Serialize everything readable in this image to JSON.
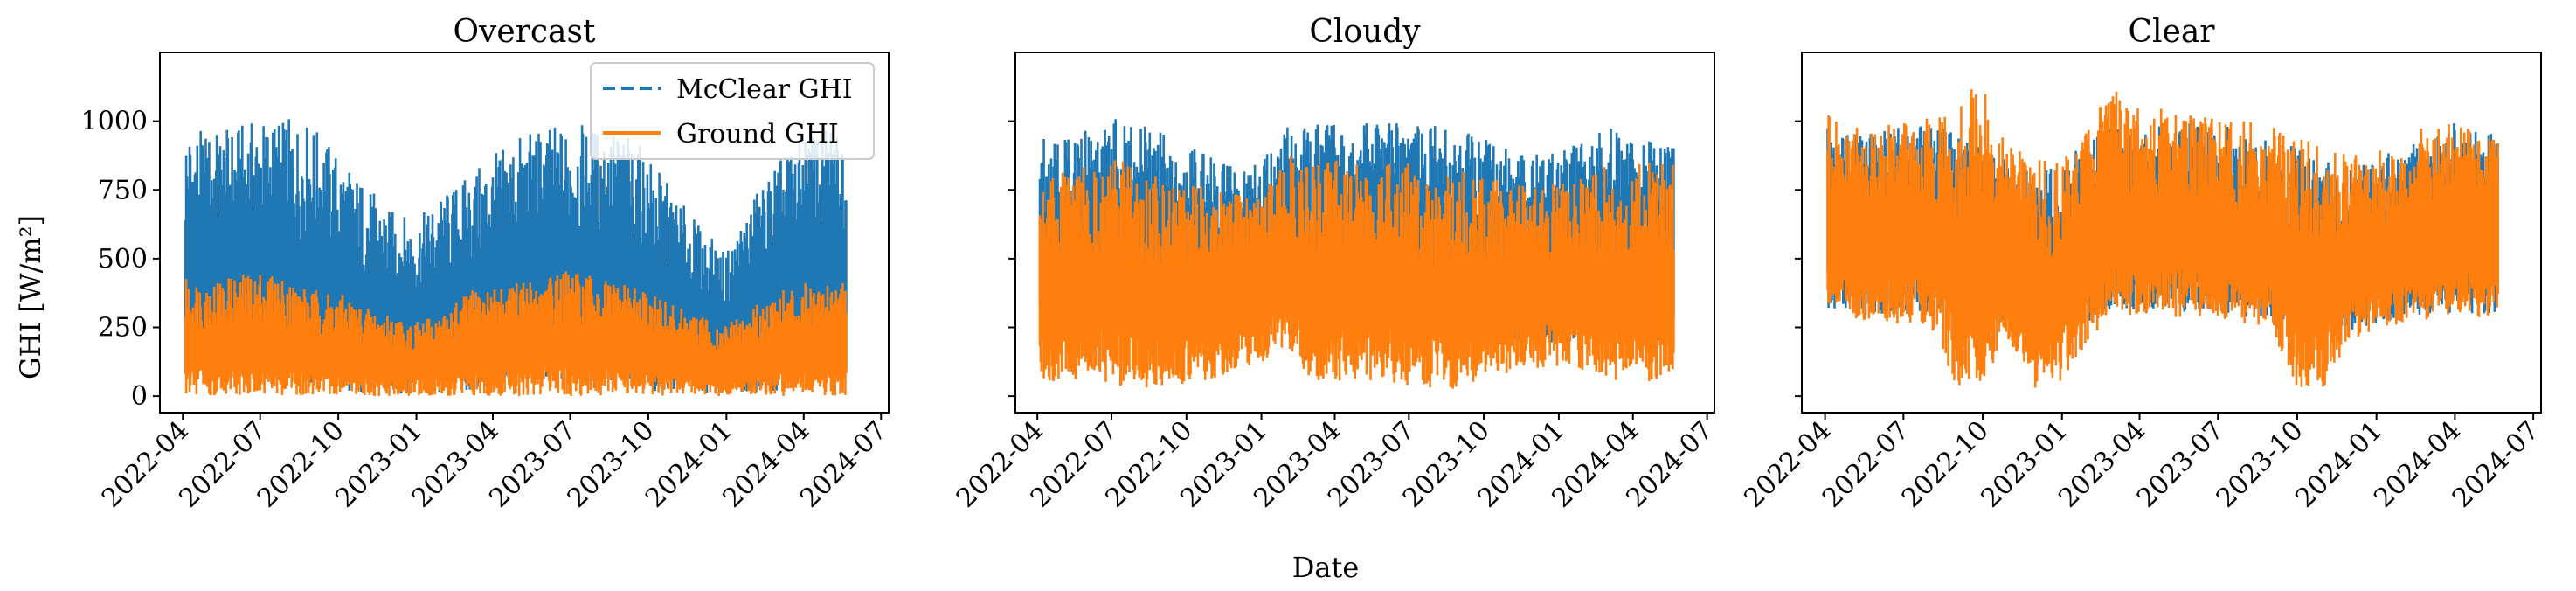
{
  "figure": {
    "supxlabel": "Date",
    "supylabel": "GHI [W/m²]"
  },
  "style": {
    "mcclear_color": "#1f77b4",
    "ground_color": "#ff7f0e",
    "mcclear_linestyle": "dashed",
    "ground_linestyle": "solid"
  },
  "legend": {
    "placement": "upper right of first panel",
    "entries": [
      "McClear GHI",
      "Ground GHI"
    ]
  },
  "axes": {
    "y_ticks": [
      0,
      250,
      500,
      750,
      1000
    ],
    "y_tick_labels": [
      "0",
      "250",
      "500",
      "750",
      "1000"
    ],
    "y_lim": [
      -60,
      1250
    ],
    "x_tick_labels": [
      "2022-04",
      "2022-07",
      "2022-10",
      "2023-01",
      "2023-04",
      "2023-07",
      "2023-10",
      "2024-01",
      "2024-04",
      "2024-07"
    ],
    "x_lim": [
      "2022-03-05",
      "2024-07-10"
    ],
    "shared_y": true
  },
  "chart_data": [
    {
      "type": "line",
      "title": "Overcast",
      "x": [
        "2022-04",
        "2022-05",
        "2022-06",
        "2022-07",
        "2022-08",
        "2022-09",
        "2022-10",
        "2022-11",
        "2022-12",
        "2023-01",
        "2023-02",
        "2023-03",
        "2023-04",
        "2023-05",
        "2023-06",
        "2023-07",
        "2023-08",
        "2023-09",
        "2023-10",
        "2023-11",
        "2023-12",
        "2024-01",
        "2024-02",
        "2024-03",
        "2024-04",
        "2024-05"
      ],
      "series": [
        {
          "name": "McClear GHI",
          "min": [
            40,
            60,
            70,
            60,
            40,
            30,
            20,
            10,
            10,
            10,
            10,
            20,
            30,
            50,
            60,
            60,
            40,
            30,
            20,
            10,
            10,
            10,
            10,
            20,
            40,
            60
          ],
          "max": [
            990,
            960,
            980,
            1010,
            1010,
            990,
            880,
            780,
            680,
            640,
            730,
            800,
            880,
            950,
            980,
            990,
            980,
            970,
            880,
            740,
            620,
            520,
            720,
            860,
            950,
            990
          ]
        },
        {
          "name": "Ground GHI",
          "min": [
            0,
            0,
            0,
            0,
            0,
            0,
            0,
            0,
            0,
            0,
            0,
            0,
            0,
            0,
            0,
            0,
            0,
            0,
            0,
            0,
            0,
            0,
            0,
            0,
            0,
            0
          ],
          "max": [
            430,
            420,
            440,
            460,
            430,
            390,
            380,
            330,
            300,
            270,
            300,
            380,
            400,
            420,
            440,
            460,
            430,
            410,
            380,
            330,
            290,
            260,
            320,
            380,
            410,
            430
          ]
        }
      ]
    },
    {
      "type": "line",
      "title": "Cloudy",
      "x": [
        "2022-04",
        "2022-05",
        "2022-06",
        "2022-07",
        "2022-08",
        "2022-09",
        "2022-10",
        "2022-11",
        "2022-12",
        "2023-01",
        "2023-02",
        "2023-03",
        "2023-04",
        "2023-05",
        "2023-06",
        "2023-07",
        "2023-08",
        "2023-09",
        "2023-10",
        "2023-11",
        "2023-12",
        "2024-01",
        "2024-02",
        "2024-03",
        "2024-04",
        "2024-05"
      ],
      "series": [
        {
          "name": "McClear GHI",
          "min": [
            220,
            240,
            260,
            250,
            240,
            230,
            200,
            190,
            200,
            210,
            280,
            280,
            250,
            240,
            250,
            240,
            240,
            230,
            210,
            190,
            190,
            190,
            200,
            220,
            240,
            260
          ],
          "max": [
            1000,
            960,
            990,
            1010,
            1000,
            960,
            920,
            880,
            860,
            850,
            1000,
            990,
            990,
            1000,
            990,
            1000,
            990,
            970,
            940,
            900,
            880,
            900,
            940,
            990,
            960,
            940
          ]
        },
        {
          "name": "Ground GHI",
          "min": [
            40,
            60,
            50,
            40,
            30,
            10,
            40,
            60,
            90,
            120,
            180,
            60,
            50,
            60,
            50,
            40,
            30,
            20,
            60,
            80,
            100,
            110,
            90,
            60,
            40,
            60
          ],
          "max": [
            830,
            820,
            840,
            860,
            850,
            800,
            790,
            760,
            740,
            720,
            880,
            870,
            860,
            870,
            860,
            850,
            840,
            820,
            800,
            780,
            760,
            780,
            800,
            840,
            860,
            850
          ]
        }
      ]
    },
    {
      "type": "line",
      "title": "Clear",
      "x": [
        "2022-04",
        "2022-05",
        "2022-06",
        "2022-07",
        "2022-08",
        "2022-09",
        "2022-10",
        "2022-11",
        "2022-12",
        "2023-01",
        "2023-02",
        "2023-03",
        "2023-04",
        "2023-05",
        "2023-06",
        "2023-07",
        "2023-08",
        "2023-09",
        "2023-10",
        "2023-11",
        "2023-12",
        "2024-01",
        "2024-02",
        "2024-03",
        "2024-04",
        "2024-05"
      ],
      "series": [
        {
          "name": "McClear GHI",
          "min": [
            300,
            280,
            300,
            290,
            300,
            260,
            280,
            260,
            230,
            250,
            260,
            320,
            300,
            300,
            300,
            310,
            290,
            260,
            240,
            230,
            230,
            260,
            280,
            300,
            300,
            300
          ],
          "max": [
            1000,
            960,
            960,
            990,
            1000,
            960,
            900,
            860,
            840,
            820,
            950,
            1000,
            990,
            980,
            1000,
            1000,
            990,
            960,
            900,
            860,
            830,
            860,
            920,
            980,
            1000,
            960
          ]
        },
        {
          "name": "Ground GHI",
          "min": [
            280,
            260,
            280,
            250,
            260,
            40,
            40,
            200,
            30,
            40,
            200,
            300,
            290,
            280,
            290,
            280,
            260,
            240,
            20,
            30,
            200,
            240,
            260,
            280,
            290,
            280
          ],
          "max": [
            1030,
            990,
            980,
            1000,
            1020,
            1040,
            1190,
            920,
            880,
            860,
            1000,
            1120,
            1060,
            1050,
            1020,
            1010,
            1000,
            990,
            950,
            900,
            880,
            900,
            940,
            1000,
            1000,
            960
          ]
        }
      ]
    }
  ]
}
